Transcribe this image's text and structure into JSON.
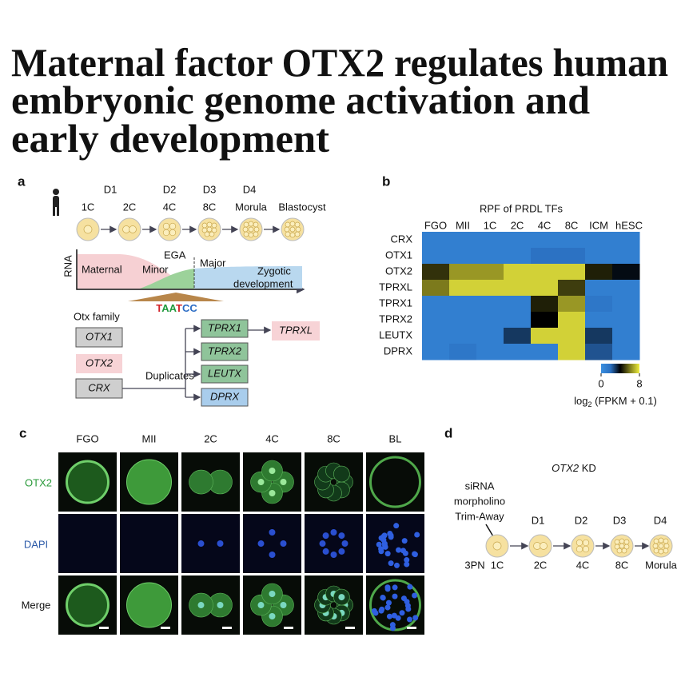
{
  "title": {
    "lines": [
      "Maternal factor OTX2 regulates human",
      "embryonic genome activation and",
      "early development"
    ]
  },
  "panel_a": {
    "label": "a",
    "days": [
      "D1",
      "D2",
      "D3",
      "D4"
    ],
    "stages": [
      "1C",
      "2C",
      "4C",
      "8C",
      "Morula",
      "Blastocyst"
    ],
    "rna_plot": {
      "y_label": "RNA",
      "x_label": "development",
      "phases": [
        "Maternal",
        "Minor",
        "EGA",
        "Major",
        "Zygotic"
      ]
    },
    "motif": "TAATCC",
    "family_label": "Otx family",
    "family": [
      "OTX1",
      "OTX2",
      "CRX"
    ],
    "duplicates_label": "Duplicates",
    "duplicates": [
      "TPRX1",
      "TPRX2",
      "LEUTX",
      "DPRX"
    ],
    "derived": "TPRXL"
  },
  "chart_data": {
    "type": "heatmap",
    "panel_label": "b",
    "title": "RPF of PRDL TFs",
    "columns": [
      "FGO",
      "MII",
      "1C",
      "2C",
      "4C",
      "8C",
      "ICM",
      "hESC"
    ],
    "rows": [
      "CRX",
      "OTX1",
      "OTX2",
      "TPRXL",
      "TPRX1",
      "TPRX2",
      "LEUTX",
      "DPRX"
    ],
    "values": [
      [
        1,
        1,
        1,
        1,
        1,
        1,
        1,
        1
      ],
      [
        1,
        1,
        1,
        1,
        1.8,
        1.8,
        1,
        1
      ],
      [
        4.8,
        6.5,
        6.5,
        7.5,
        7.5,
        7.5,
        4.5,
        3.8
      ],
      [
        6,
        7.5,
        7.5,
        7.5,
        7.5,
        5,
        1,
        1
      ],
      [
        1,
        1,
        1,
        1,
        4.5,
        6.5,
        1.5,
        1
      ],
      [
        1,
        1,
        1,
        1,
        4,
        7.5,
        1,
        1
      ],
      [
        1,
        1,
        1,
        3,
        7.5,
        7.5,
        3,
        1
      ],
      [
        1,
        1.5,
        1,
        1,
        1,
        7.5,
        2.5,
        1
      ]
    ],
    "clim": [
      0,
      8
    ],
    "cticks": [
      0,
      8
    ],
    "colormap": [
      "#3a8fe0",
      "#2a6fc0",
      "#000000",
      "#7c7a1c",
      "#eeee40"
    ],
    "colorbar_label": [
      "log",
      "2",
      " (FPKM + 0.1)"
    ]
  },
  "panel_c": {
    "label": "c",
    "columns": [
      "FGO",
      "MII",
      "2C",
      "4C",
      "8C",
      "BL"
    ],
    "rows": [
      "OTX2",
      "DAPI",
      "Merge"
    ]
  },
  "panel_d": {
    "label": "d",
    "title": [
      "OTX2",
      " KD"
    ],
    "treatments": [
      "siRNA",
      "morpholino",
      "Trim-Away"
    ],
    "days": [
      "D1",
      "D2",
      "D3",
      "D4"
    ],
    "zygote_label": "3PN",
    "stages": [
      "1C",
      "2C",
      "4C",
      "8C",
      "Morula"
    ]
  }
}
